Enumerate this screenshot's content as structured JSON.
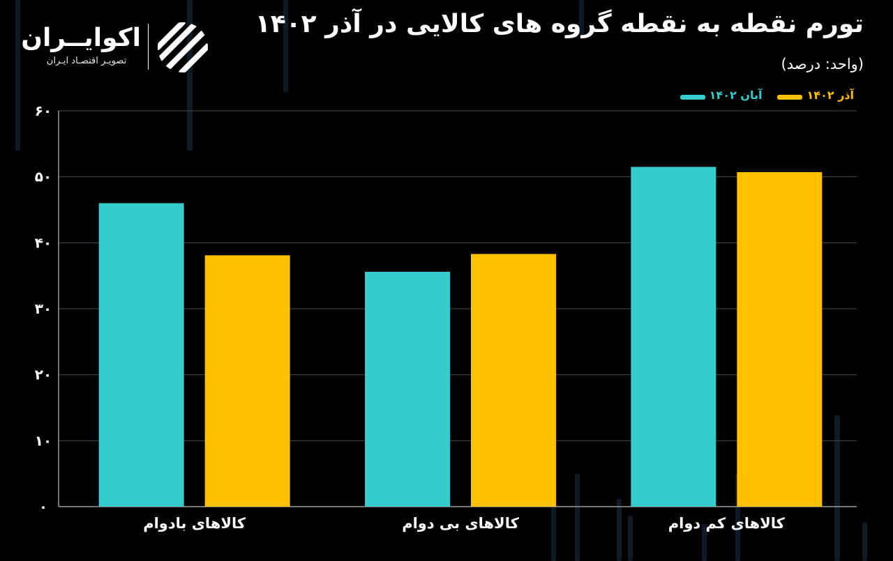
{
  "header": {
    "title": "تورم نقطه به نقطه گروه های کالایی در آذر ۱۴۰۲",
    "subtitle": "(واحد: درصد)"
  },
  "brand": {
    "name": "اکوایــران",
    "tagline": "تصویـر اقتصـاد ایـران"
  },
  "colors": {
    "aban": "#35CCCD",
    "azar": "#FFC000",
    "grid": "#4a4a4a",
    "axis": "#9a9a9a"
  },
  "chart_data": {
    "type": "bar",
    "categories": [
      "کالاهای بادوام",
      "کالاهای بی دوام",
      "کالاهای کم دوام"
    ],
    "series": [
      {
        "name": "آبان ۱۴۰۲",
        "values": [
          46,
          35.6,
          51.5
        ]
      },
      {
        "name": "آذر ۱۴۰۲",
        "values": [
          38.1,
          38.3,
          50.7
        ]
      }
    ],
    "title": "تورم نقطه به نقطه گروه های کالایی در آذر ۱۴۰۲",
    "ylabel": "",
    "ylim": [
      0,
      60
    ],
    "yticks": [
      0,
      10,
      20,
      30,
      40,
      50,
      60
    ],
    "ytick_labels": [
      "۰",
      "۱۰",
      "۲۰",
      "۳۰",
      "۴۰",
      "۵۰",
      "۶۰"
    ],
    "grid": true,
    "legend": "top-right"
  }
}
